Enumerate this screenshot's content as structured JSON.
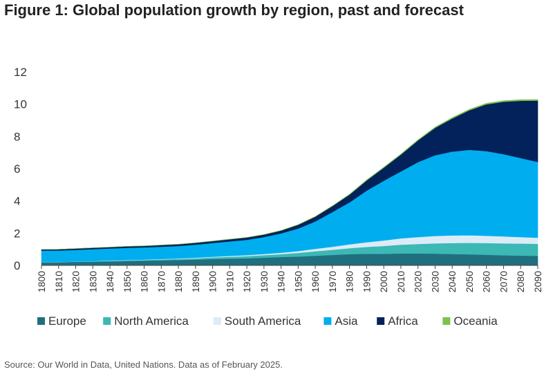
{
  "header": {
    "title": "Figure 1: Global population growth by region, past and forecast"
  },
  "footer": {
    "source": "Source: Our World in Data, United Nations. Data as of February 2025."
  },
  "chart_data": {
    "type": "area",
    "stacked": true,
    "title": "Figure 1: Global population growth by region, past and forecast",
    "xlabel": "",
    "ylabel": "",
    "ylim": [
      0,
      12
    ],
    "yticks": [
      "0",
      "2",
      "4",
      "6",
      "8",
      "10",
      "12"
    ],
    "categories": [
      "1800",
      "1810",
      "1820",
      "1830",
      "1840",
      "1850",
      "1860",
      "1870",
      "1880",
      "1890",
      "1900",
      "1910",
      "1920",
      "1930",
      "1940",
      "1950",
      "1960",
      "1970",
      "1980",
      "1990",
      "2000",
      "2010",
      "2020",
      "2030",
      "2040",
      "2050",
      "2060",
      "2070",
      "2080",
      "2090"
    ],
    "series": [
      {
        "name": "Europe",
        "color": "#1f6f7f",
        "values": [
          0.2,
          0.2,
          0.22,
          0.24,
          0.26,
          0.28,
          0.3,
          0.32,
          0.34,
          0.36,
          0.4,
          0.42,
          0.44,
          0.48,
          0.52,
          0.55,
          0.6,
          0.65,
          0.7,
          0.72,
          0.72,
          0.74,
          0.74,
          0.73,
          0.71,
          0.69,
          0.66,
          0.63,
          0.61,
          0.59
        ]
      },
      {
        "name": "North America",
        "color": "#3cb8b5",
        "values": [
          0.01,
          0.01,
          0.01,
          0.02,
          0.02,
          0.03,
          0.04,
          0.05,
          0.06,
          0.08,
          0.1,
          0.12,
          0.14,
          0.16,
          0.18,
          0.23,
          0.28,
          0.32,
          0.37,
          0.43,
          0.49,
          0.55,
          0.59,
          0.64,
          0.68,
          0.71,
          0.73,
          0.74,
          0.75,
          0.75
        ]
      },
      {
        "name": "South America",
        "color": "#dbecf7",
        "values": [
          0.01,
          0.01,
          0.01,
          0.01,
          0.02,
          0.02,
          0.02,
          0.03,
          0.03,
          0.04,
          0.04,
          0.05,
          0.06,
          0.07,
          0.09,
          0.11,
          0.15,
          0.19,
          0.24,
          0.29,
          0.34,
          0.39,
          0.43,
          0.46,
          0.47,
          0.47,
          0.45,
          0.43,
          0.4,
          0.38
        ]
      },
      {
        "name": "Asia",
        "color": "#00aeef",
        "values": [
          0.7,
          0.71,
          0.72,
          0.74,
          0.75,
          0.76,
          0.76,
          0.76,
          0.78,
          0.81,
          0.85,
          0.9,
          0.95,
          1.05,
          1.2,
          1.4,
          1.7,
          2.15,
          2.6,
          3.2,
          3.7,
          4.15,
          4.65,
          5.0,
          5.2,
          5.3,
          5.25,
          5.1,
          4.9,
          4.7
        ]
      },
      {
        "name": "Africa",
        "color": "#03215a",
        "values": [
          0.07,
          0.07,
          0.08,
          0.08,
          0.08,
          0.09,
          0.09,
          0.1,
          0.1,
          0.11,
          0.12,
          0.13,
          0.14,
          0.15,
          0.17,
          0.23,
          0.29,
          0.37,
          0.48,
          0.63,
          0.81,
          1.04,
          1.34,
          1.7,
          2.05,
          2.45,
          2.9,
          3.25,
          3.55,
          3.8
        ]
      },
      {
        "name": "Oceania",
        "color": "#7dc24b",
        "values": [
          0.002,
          0.002,
          0.002,
          0.002,
          0.003,
          0.003,
          0.004,
          0.005,
          0.006,
          0.007,
          0.006,
          0.007,
          0.009,
          0.01,
          0.011,
          0.013,
          0.016,
          0.019,
          0.023,
          0.027,
          0.031,
          0.036,
          0.042,
          0.048,
          0.053,
          0.057,
          0.061,
          0.064,
          0.066,
          0.068
        ]
      }
    ]
  }
}
